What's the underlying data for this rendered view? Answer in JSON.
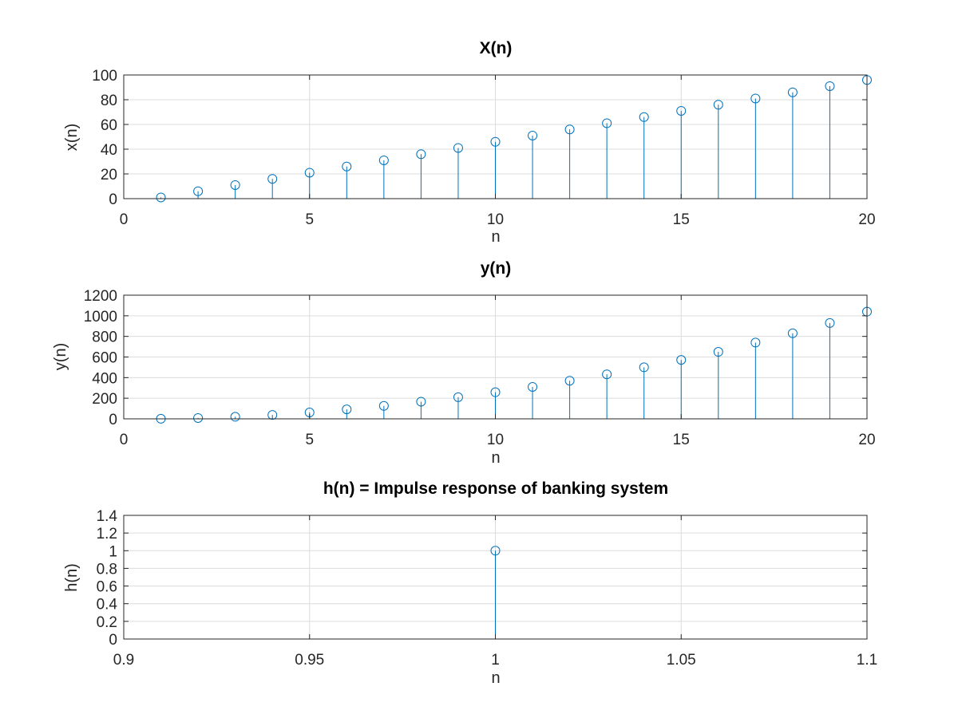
{
  "chart_data": [
    {
      "type": "stem",
      "title": "X(n)",
      "xlabel": "n",
      "ylabel": "x(n)",
      "xlim": [
        0,
        20
      ],
      "ylim": [
        0,
        100
      ],
      "xticks": [
        0,
        5,
        10,
        15,
        20
      ],
      "yticks": [
        0,
        20,
        40,
        60,
        80,
        100
      ],
      "xtick_labels": [
        "0",
        "5",
        "10",
        "15",
        "20"
      ],
      "ytick_labels": [
        "0",
        "20",
        "40",
        "60",
        "80",
        "100"
      ],
      "grid": true,
      "color": "#0072bd",
      "x": [
        1,
        2,
        3,
        4,
        5,
        6,
        7,
        8,
        9,
        10,
        11,
        12,
        13,
        14,
        15,
        16,
        17,
        18,
        19,
        20
      ],
      "y": [
        1,
        6,
        11,
        16,
        21,
        26,
        31,
        36,
        41,
        46,
        51,
        56,
        61,
        66,
        71,
        76,
        81,
        86,
        91,
        96
      ]
    },
    {
      "type": "stem",
      "title": "y(n)",
      "xlabel": "n",
      "ylabel": "y(n)",
      "xlim": [
        0,
        20
      ],
      "ylim": [
        0,
        1200
      ],
      "xticks": [
        0,
        5,
        10,
        15,
        20
      ],
      "yticks": [
        0,
        200,
        400,
        600,
        800,
        1000,
        1200
      ],
      "xtick_labels": [
        "0",
        "5",
        "10",
        "15",
        "20"
      ],
      "ytick_labels": [
        "0",
        "200",
        "400",
        "600",
        "800",
        "1000",
        "1200"
      ],
      "grid": true,
      "color": "#0072bd",
      "x": [
        1,
        2,
        3,
        4,
        5,
        6,
        7,
        8,
        9,
        10,
        11,
        12,
        13,
        14,
        15,
        16,
        17,
        18,
        19,
        20
      ],
      "y": [
        1,
        8,
        20,
        38,
        62,
        92,
        126,
        166,
        210,
        258,
        310,
        370,
        432,
        500,
        572,
        650,
        740,
        830,
        930,
        1040
      ]
    },
    {
      "type": "stem",
      "title": "h(n) = Impulse response of banking system",
      "xlabel": "n",
      "ylabel": "h(n)",
      "xlim": [
        0.9,
        1.1
      ],
      "ylim": [
        0,
        1.4
      ],
      "xticks": [
        0.9,
        0.95,
        1,
        1.05,
        1.1
      ],
      "yticks": [
        0,
        0.2,
        0.4,
        0.6,
        0.8,
        1,
        1.2,
        1.4
      ],
      "xtick_labels": [
        "0.9",
        "0.95",
        "1",
        "1.05",
        "1.1"
      ],
      "ytick_labels": [
        "0",
        "0.2",
        "0.4",
        "0.6",
        "0.8",
        "1",
        "1.2",
        "1.4"
      ],
      "grid": true,
      "color": "#0072bd",
      "x": [
        1
      ],
      "y": [
        1
      ]
    }
  ]
}
